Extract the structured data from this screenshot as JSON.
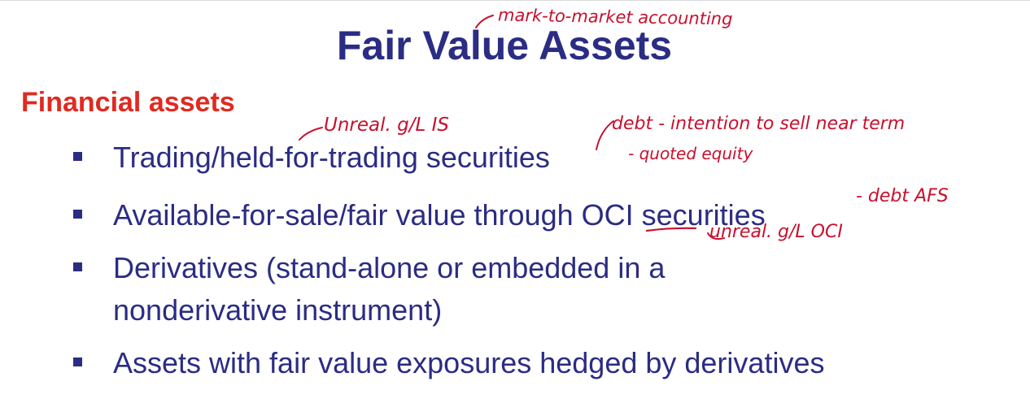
{
  "slide": {
    "title": "Fair Value Assets",
    "section_heading": "Financial assets",
    "bullets": [
      "Trading/held-for-trading securities",
      "Available-for-sale/fair value through OCI securities",
      "Derivatives (stand-alone or embedded in a",
      "nonderivative instrument)",
      "Assets with fair value exposures hedged by derivatives"
    ]
  },
  "annotations": {
    "mark_to_market": "mark-to-market accounting",
    "unreal_is": "Unreal. g/L IS",
    "debt_near_term": "debt - intention to sell near term",
    "quoted_equity": "- quoted equity",
    "debt_afs": "- debt AFS",
    "unreal_oci": "unreal. g/L OCI"
  },
  "colors": {
    "title": "#2b2c83",
    "section": "#e02a20",
    "ink": "#c8102e"
  }
}
